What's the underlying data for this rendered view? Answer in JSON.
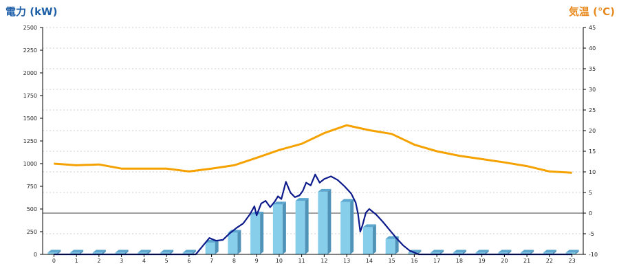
{
  "chart_data": {
    "type": "bar+line",
    "left_axis": {
      "title": "電力 (kW)",
      "color": "#1f5fa8",
      "range": [
        0,
        2500
      ],
      "ticks": [
        0,
        250,
        500,
        750,
        1000,
        1250,
        1500,
        1750,
        2000,
        2250,
        2500
      ]
    },
    "right_axis": {
      "title": "気温 (℃)",
      "color": "#e8891e",
      "range": [
        -10,
        45
      ],
      "ticks": [
        -10,
        -5,
        0,
        5,
        10,
        15,
        20,
        25,
        30,
        35,
        40,
        45
      ]
    },
    "categories": [
      "0",
      "1",
      "2",
      "3",
      "4",
      "5",
      "6",
      "7",
      "8",
      "9",
      "10",
      "11",
      "12",
      "13",
      "14",
      "15",
      "16",
      "17",
      "18",
      "19",
      "20",
      "21",
      "22",
      "23"
    ],
    "grid": true,
    "reference_line_temp": 0,
    "series": [
      {
        "kind": "bar",
        "axis": "left",
        "color": "#87ceeb",
        "values": [
          20,
          20,
          20,
          20,
          20,
          20,
          20,
          130,
          240,
          440,
          550,
          590,
          690,
          580,
          300,
          170,
          20,
          20,
          20,
          20,
          20,
          20,
          20,
          20
        ]
      },
      {
        "kind": "line",
        "axis": "left",
        "color": "#0d1a8c",
        "x": [
          0,
          1,
          2,
          3,
          4,
          5,
          5.5,
          6,
          6.3,
          6.6,
          6.9,
          7.2,
          7.5,
          7.8,
          8.1,
          8.4,
          8.7,
          8.9,
          9.0,
          9.2,
          9.4,
          9.6,
          9.8,
          9.95,
          10.1,
          10.3,
          10.5,
          10.7,
          10.9,
          11.05,
          11.2,
          11.4,
          11.6,
          11.8,
          12.0,
          12.3,
          12.6,
          12.9,
          13.2,
          13.4,
          13.5,
          13.6,
          13.7,
          13.85,
          14.0,
          14.3,
          14.6,
          14.9,
          15.2,
          15.5,
          15.8,
          16.2,
          17,
          18,
          19,
          20,
          21,
          22,
          23
        ],
        "values": [
          0,
          0,
          0,
          0,
          0,
          0,
          0,
          0,
          0,
          90,
          180,
          150,
          160,
          230,
          290,
          340,
          440,
          530,
          430,
          560,
          590,
          520,
          580,
          640,
          610,
          800,
          680,
          630,
          650,
          700,
          790,
          760,
          880,
          790,
          830,
          860,
          820,
          750,
          670,
          570,
          450,
          250,
          320,
          460,
          500,
          440,
          360,
          270,
          180,
          100,
          40,
          0,
          0,
          0,
          0,
          0,
          0,
          0,
          0
        ]
      },
      {
        "kind": "line",
        "axis": "right",
        "color": "#f5a200",
        "x": [
          0,
          1,
          2,
          3,
          4,
          5,
          6,
          7,
          8,
          9,
          10,
          11,
          12,
          13,
          14,
          15,
          16,
          17,
          18,
          19,
          20,
          21,
          22,
          23
        ],
        "values": [
          12.0,
          11.6,
          11.8,
          10.8,
          10.8,
          10.8,
          10.1,
          10.8,
          11.6,
          13.4,
          15.3,
          16.8,
          19.4,
          21.3,
          20.1,
          19.2,
          16.6,
          15.0,
          13.9,
          13.1,
          12.3,
          11.4,
          10.1,
          9.8
        ]
      }
    ]
  }
}
